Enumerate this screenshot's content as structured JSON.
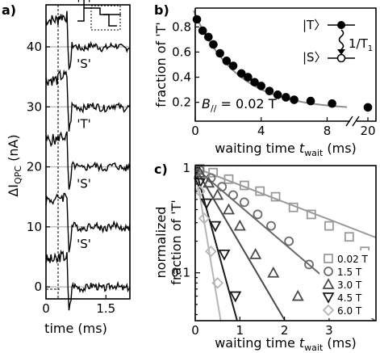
{
  "chart_data": [
    {
      "panel": "a)",
      "type": "line",
      "xlabel": "time (ms)",
      "ylabel_main": "ΔI",
      "ylabel_sub": "QPC",
      "ylabel_unit": " (nA)",
      "x_ticks": [
        "0",
        "1.5"
      ],
      "y_ticks": [
        "0",
        "10",
        "20",
        "30",
        "40"
      ],
      "xlim": [
        0,
        2.1
      ],
      "ylim": [
        -2,
        47
      ],
      "pulse_time_ms": 0.55,
      "traces": [
        {
          "label": "'S'",
          "offset": 0,
          "pre": 1.5,
          "dip": 0,
          "settle": 0,
          "phase": 0
        },
        {
          "label": "'S'",
          "offset": 10,
          "pre": 1.4,
          "dip": 0,
          "settle": 0,
          "phase": 1
        },
        {
          "label": "'T'",
          "offset": 20,
          "pre": 1.3,
          "dip": 0,
          "settle": 0,
          "phase": 2
        },
        {
          "label": "'S'",
          "offset": 30,
          "pre": 1.6,
          "dip": 1.5,
          "settle": 0,
          "phase": 3
        },
        {
          "label": "'T'",
          "offset": 40,
          "pre": 1.4,
          "dip": 0,
          "settle": 0,
          "phase": 4
        }
      ]
    },
    {
      "panel": "b)",
      "type": "scatter",
      "xlabel_main": "waiting time ",
      "xlabel_var": "t",
      "xlabel_sub": "wait",
      "xlabel_unit": " (ms)",
      "ylabel": "fraction of 'T'",
      "x_ticks": [
        "0",
        "4",
        "8",
        "20"
      ],
      "y_ticks": [
        "0.2",
        "0.4",
        "0.6",
        "0.8"
      ],
      "axis_break": "//",
      "xlim": [
        0,
        9.2
      ],
      "ylim": [
        0.05,
        0.95
      ],
      "field_label": "B",
      "field_sub": "//",
      "field_value": " = 0.02 T",
      "points": [
        [
          0.1,
          0.86
        ],
        [
          0.45,
          0.77
        ],
        [
          0.8,
          0.72
        ],
        [
          1.1,
          0.66
        ],
        [
          1.5,
          0.59
        ],
        [
          1.9,
          0.53
        ],
        [
          2.3,
          0.49
        ],
        [
          2.8,
          0.43
        ],
        [
          3.2,
          0.4
        ],
        [
          3.6,
          0.36
        ],
        [
          4.0,
          0.33
        ],
        [
          4.5,
          0.29
        ],
        [
          5.0,
          0.26
        ],
        [
          5.5,
          0.24
        ],
        [
          6.0,
          0.22
        ],
        [
          7.0,
          0.21
        ],
        [
          8.3,
          0.19
        ]
      ],
      "point_at_20ms": 0.16,
      "fit": {
        "a": 0.76,
        "tau": 2.6,
        "c": 0.14
      },
      "inset": {
        "upper_state": "|T〉",
        "lower_state": "|S〉",
        "rate": "1/T",
        "rate_sub": "1"
      }
    },
    {
      "panel": "c)",
      "type": "scatter",
      "yscale": "log",
      "xlabel_main": "waiting time ",
      "xlabel_var": "t",
      "xlabel_sub": "wait",
      "xlabel_unit": " (ms)",
      "ylabel_line1": "normalized",
      "ylabel_line2": "fraction of 'T'",
      "x_ticks": [
        "0",
        "1",
        "2",
        "3"
      ],
      "y_ticks": [
        "0.1",
        "1"
      ],
      "xlim": [
        0,
        4.05
      ],
      "ylim": [
        0.035,
        1.05
      ],
      "series": [
        {
          "name": "0.02 T",
          "marker": "square",
          "color": "#9a9a9a",
          "tau": 2.65,
          "x": [
            0.1,
            0.4,
            0.75,
            1.1,
            1.45,
            1.8,
            2.2,
            2.6,
            3.0,
            3.45,
            3.8
          ],
          "y": [
            0.98,
            0.9,
            0.78,
            0.68,
            0.6,
            0.53,
            0.42,
            0.36,
            0.28,
            0.22,
            0.16
          ]
        },
        {
          "name": "1.5 T",
          "marker": "circle",
          "color": "#6a6a6a",
          "tau": 1.2,
          "x": [
            0.1,
            0.35,
            0.6,
            0.85,
            1.1,
            1.4,
            1.7,
            2.1,
            2.55
          ],
          "y": [
            0.95,
            0.8,
            0.66,
            0.55,
            0.47,
            0.36,
            0.28,
            0.2,
            0.12
          ]
        },
        {
          "name": "3.0 T",
          "marker": "triangle",
          "color": "#4a4a4a",
          "tau": 0.6,
          "x": [
            0.1,
            0.3,
            0.5,
            0.75,
            1.0,
            1.35,
            1.75,
            2.3
          ],
          "y": [
            0.9,
            0.72,
            0.55,
            0.4,
            0.28,
            0.15,
            0.1,
            0.06
          ]
        },
        {
          "name": "4.5 T",
          "marker": "tri-down",
          "color": "#1a1a1a",
          "tau": 0.28,
          "x": [
            0.1,
            0.25,
            0.45,
            0.65,
            0.9
          ],
          "y": [
            0.72,
            0.46,
            0.28,
            0.15,
            0.06
          ]
        },
        {
          "name": "6.0 T",
          "marker": "diamond",
          "color": "#b5b5b5",
          "tau": 0.17,
          "x": [
            0.1,
            0.2,
            0.35,
            0.5
          ],
          "y": [
            0.6,
            0.33,
            0.16,
            0.08
          ]
        }
      ]
    }
  ]
}
